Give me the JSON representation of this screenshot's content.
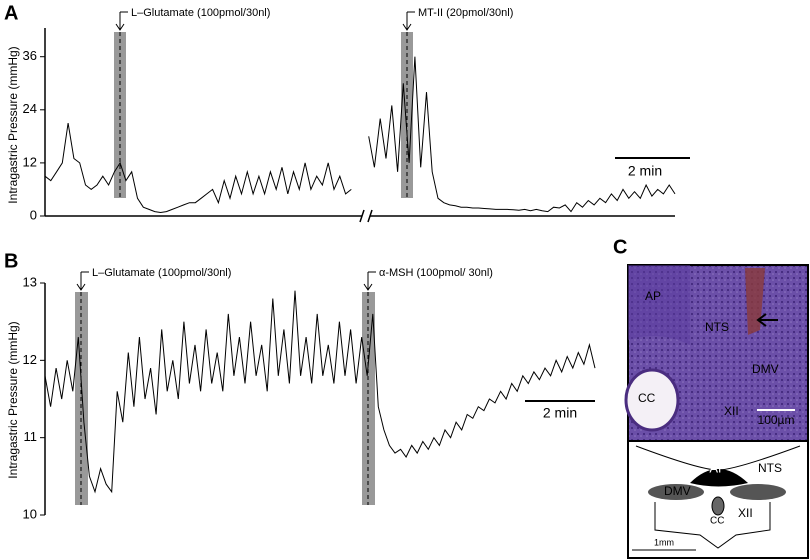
{
  "chart_data": [
    {
      "type": "line",
      "panel": "A",
      "ylabel": "Intragastric Pressure (mmHg)",
      "ylim": [
        0,
        40
      ],
      "yticks": [
        0,
        12,
        24,
        36
      ],
      "annotations": [
        "L–Glutamate (100pmol/30nl)",
        "MT-II (20pmol/30nl)"
      ],
      "scale_bar": "2 min",
      "series": [
        {
          "color": "#000000",
          "values": [
            9,
            8,
            10,
            12,
            21,
            13,
            12,
            7,
            6,
            7,
            9,
            7,
            10,
            12,
            8,
            10,
            4,
            2,
            1.5,
            1,
            0.8,
            1,
            1.5,
            2,
            2.5,
            3,
            3,
            4,
            5,
            6,
            3,
            8,
            4,
            9,
            5,
            10,
            5,
            9,
            5,
            10,
            6,
            11,
            5,
            10,
            6,
            12,
            6,
            9,
            7,
            12,
            6,
            9,
            5,
            6,
            null,
            null,
            18,
            11,
            22,
            13,
            25,
            10,
            30,
            12,
            36,
            11,
            28,
            10,
            4,
            3,
            2.5,
            2.3,
            2,
            2,
            1.8,
            1.8,
            1.7,
            1.6,
            1.5,
            1.5,
            1.5,
            1.4,
            1.3,
            1.5,
            1.2,
            1.5,
            1.2,
            1,
            2,
            1.8,
            2.5,
            1,
            3,
            2,
            3.5,
            2.5,
            4,
            3,
            5,
            3.5,
            6,
            4,
            5.5,
            4,
            7,
            4.5,
            6,
            5,
            7,
            5
          ]
        }
      ]
    },
    {
      "type": "line",
      "panel": "B",
      "ylabel": "Intragastric Pressure (mmHg)",
      "ylim": [
        10,
        13
      ],
      "yticks": [
        10,
        11,
        12,
        13
      ],
      "annotations": [
        "L–Glutamate (100pmol/30nl)",
        "α-MSH  (100pmol/ 30nl)"
      ],
      "scale_bar": "2 min",
      "series": [
        {
          "color": "#000000",
          "values": [
            11.8,
            11.4,
            11.9,
            11.5,
            12.0,
            11.6,
            12.3,
            11.2,
            10.5,
            10.3,
            10.6,
            10.4,
            10.3,
            11.6,
            11.2,
            12.1,
            11.4,
            12.3,
            11.5,
            11.9,
            11.3,
            12.4,
            11.6,
            12.0,
            11.5,
            12.5,
            11.7,
            12.2,
            11.6,
            12.4,
            11.7,
            12.1,
            11.6,
            12.6,
            11.8,
            12.3,
            11.7,
            12.5,
            11.8,
            12.2,
            11.6,
            12.8,
            11.8,
            12.4,
            11.7,
            12.9,
            11.8,
            12.3,
            11.7,
            12.6,
            11.8,
            12.2,
            11.7,
            12.5,
            11.8,
            12.4,
            11.7,
            12.3,
            11.8,
            12.6,
            11.4,
            11.1,
            10.9,
            10.8,
            10.85,
            10.75,
            10.9,
            10.8,
            10.95,
            10.85,
            11.0,
            10.9,
            11.1,
            11.0,
            11.2,
            11.1,
            11.3,
            11.25,
            11.4,
            11.35,
            11.5,
            11.45,
            11.6,
            11.5,
            11.7,
            11.6,
            11.8,
            11.7,
            11.85,
            11.75,
            11.9,
            11.8,
            12.0,
            11.85,
            12.05,
            11.9,
            12.1,
            11.95,
            12.2,
            11.9
          ]
        }
      ]
    }
  ],
  "panel_c": {
    "label": "C",
    "micrograph_labels": [
      "AP",
      "NTS",
      "DMV",
      "CC",
      "XII"
    ],
    "micrograph_scale": "100µm",
    "diagram_labels": [
      "AP",
      "NTS",
      "DMV",
      "CC",
      "XII"
    ],
    "diagram_scale": "1mm"
  }
}
